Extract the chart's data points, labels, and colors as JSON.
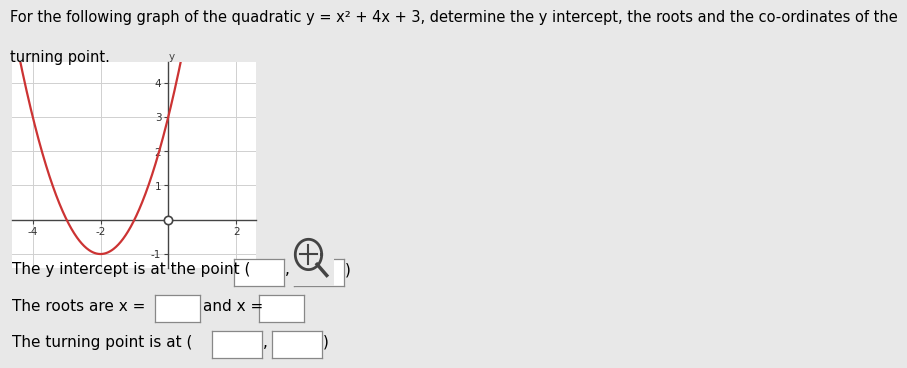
{
  "xlim": [
    -4.6,
    2.6
  ],
  "ylim": [
    -1.4,
    4.6
  ],
  "xticks": [
    -4,
    -2,
    2
  ],
  "yticks": [
    -1,
    1,
    2,
    3,
    4
  ],
  "curve_color": "#cc3333",
  "axis_color": "#444444",
  "grid_color": "#d0d0d0",
  "background_color": "#e8e8e8",
  "plot_bg_color": "#ffffff",
  "line_width": 1.6,
  "label_fontsize": 7.5,
  "title_line1": "For the following graph of the quadratic y = x² + 4x + 3, determine the y intercept, the roots and the co-ordinates of the",
  "title_line2": "turning point.",
  "title_fontsize": 10.5,
  "text_fontsize": 11
}
